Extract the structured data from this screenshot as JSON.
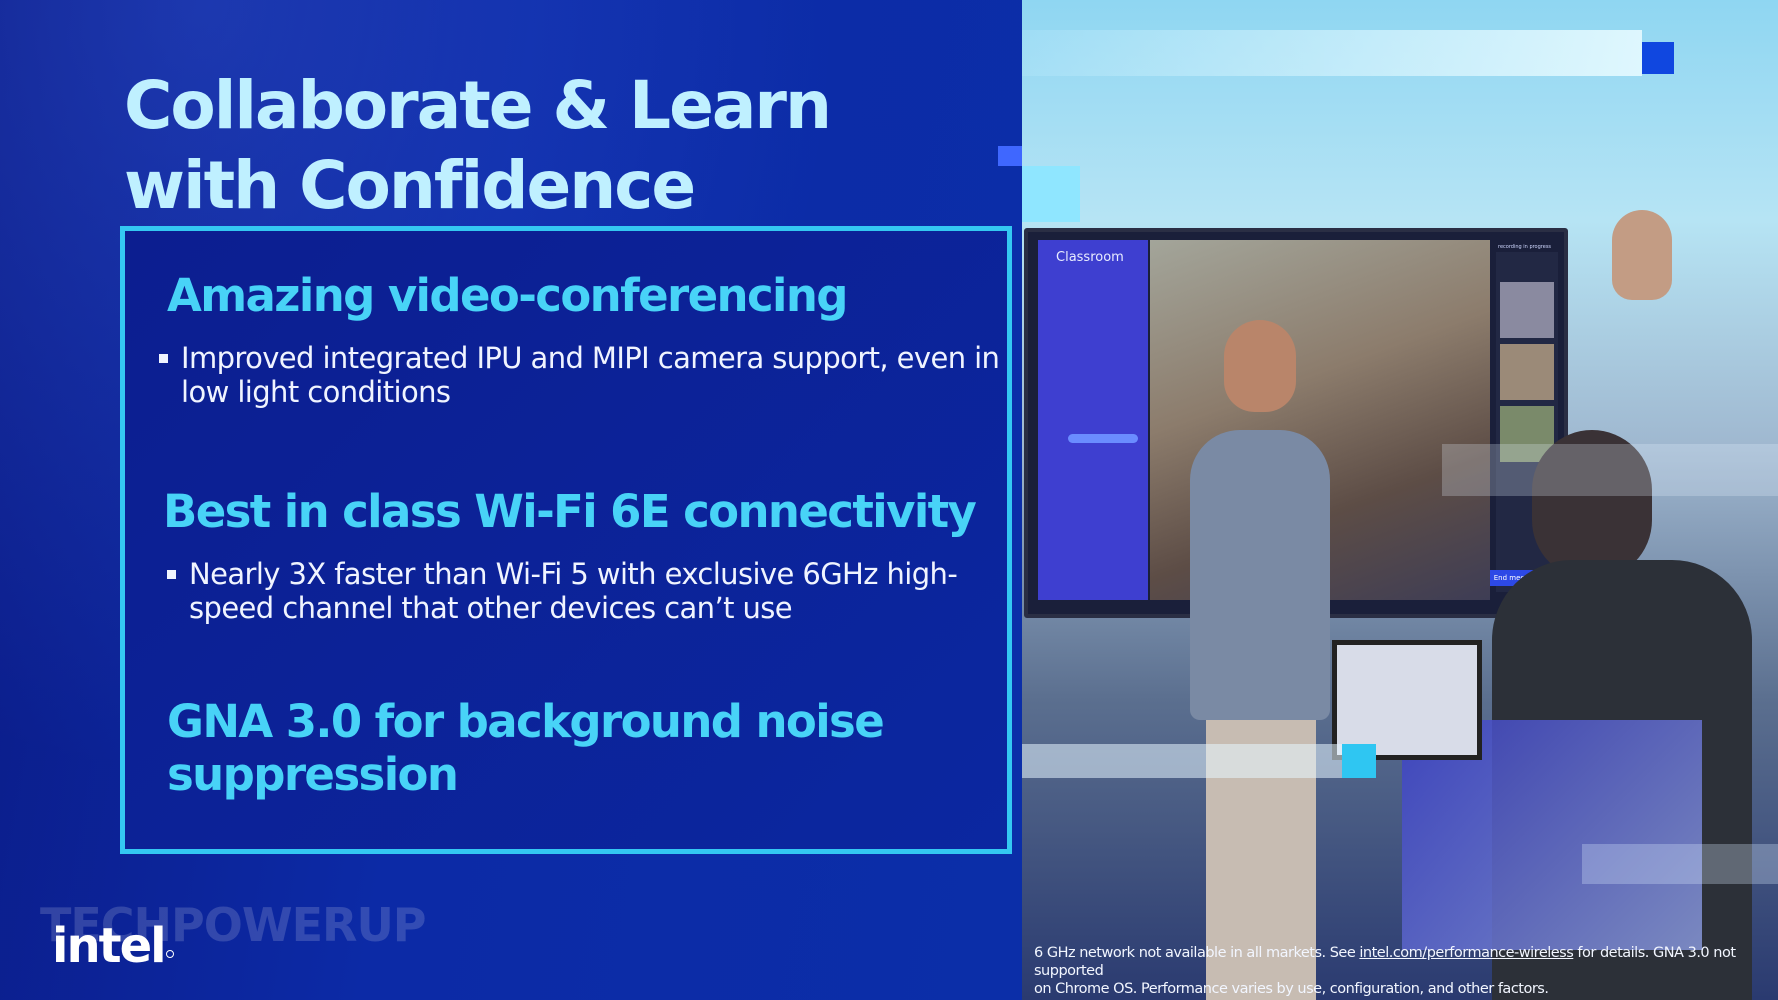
{
  "slide": {
    "title_line1": "Collaborate & Learn",
    "title_line2": "with Confidence"
  },
  "features": [
    {
      "title": "Amazing video-conferencing",
      "bullet_line1": "Improved integrated IPU and MIPI camera support, even in",
      "bullet_line2": "low light conditions"
    },
    {
      "title": "Best in class Wi-Fi 6E connectivity",
      "bullet_line1": "Nearly 3X faster than Wi-Fi 5 with exclusive 6GHz high-",
      "bullet_line2": "speed channel that other devices can’t use"
    },
    {
      "title_line1": "GNA 3.0 for background noise",
      "title_line2": "suppression"
    }
  ],
  "photo": {
    "screen_app_title": "Classroom",
    "screen_end_button": "End meeting",
    "screen_status": "recording in progress"
  },
  "footnote": {
    "part1": "6 GHz network not available in all markets. See ",
    "link": "intel.com/performance-wireless",
    "part2": " for details.  GNA 3.0 not supported",
    "line2": "on Chrome OS.  Performance varies by use, configuration, and other factors."
  },
  "brand": {
    "logo_text": "intel",
    "watermark": "TECHPOWERUP"
  },
  "colors": {
    "background": "#0b1b86",
    "accent_cyan": "#48d3f7",
    "panel_border": "#34c8f2",
    "title": "#bff0ff"
  }
}
